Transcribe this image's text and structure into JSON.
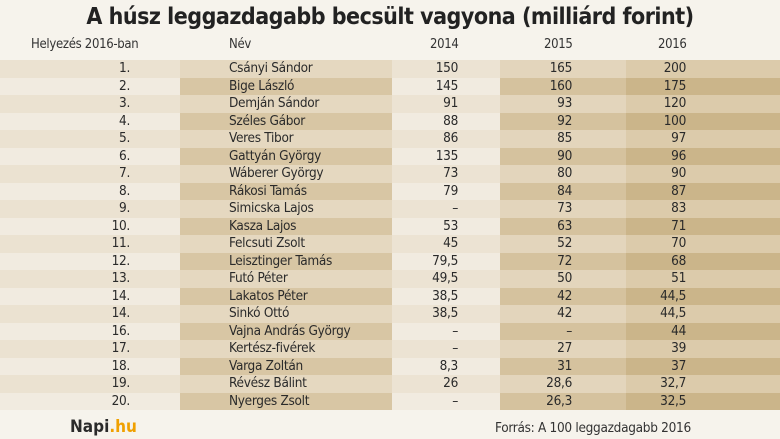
{
  "title": "A húsz leggazdagabb becsült vagyona (milliárd forint)",
  "chart_data": {
    "type": "table",
    "columns": [
      "Helyezés 2016-ban",
      "Név",
      "2014",
      "2015",
      "2016"
    ],
    "rows": [
      [
        "1.",
        "Csányi Sándor",
        "150",
        "165",
        "200"
      ],
      [
        "2.",
        "Bige László",
        "145",
        "160",
        "175"
      ],
      [
        "3.",
        "Demján Sándor",
        "91",
        "93",
        "120"
      ],
      [
        "4.",
        "Széles Gábor",
        "88",
        "92",
        "100"
      ],
      [
        "5.",
        "Veres Tibor",
        "86",
        "85",
        "97"
      ],
      [
        "6.",
        "Gattyán György",
        "135",
        "90",
        "96"
      ],
      [
        "7.",
        "Wáberer György",
        "73",
        "80",
        "90"
      ],
      [
        "8.",
        "Rákosi Tamás",
        "79",
        "84",
        "87"
      ],
      [
        "9.",
        "Simicska Lajos",
        "–",
        "73",
        "83"
      ],
      [
        "10.",
        "Kasza Lajos",
        "53",
        "63",
        "71"
      ],
      [
        "11.",
        "Felcsuti Zsolt",
        "45",
        "52",
        "70"
      ],
      [
        "12.",
        "Leisztinger Tamás",
        "79,5",
        "72",
        "68"
      ],
      [
        "13.",
        "Futó Péter",
        "49,5",
        "50",
        "51"
      ],
      [
        "14.",
        "Lakatos Péter",
        "38,5",
        "42",
        "44,5"
      ],
      [
        "14.",
        "Sinkó Ottó",
        "38,5",
        "42",
        "44,5"
      ],
      [
        "16.",
        "Vajna András György",
        "–",
        "–",
        "44"
      ],
      [
        "17.",
        "Kertész-fivérek",
        "–",
        "27",
        "39"
      ],
      [
        "18.",
        "Varga Zoltán",
        "8,3",
        "31",
        "37"
      ],
      [
        "19.",
        "Révész Bálint",
        "26",
        "28,6",
        "32,7"
      ],
      [
        "20.",
        "Nyerges Zsolt",
        "–",
        "26,3",
        "32,5"
      ]
    ]
  },
  "footer": {
    "logo_main": "Napi",
    "logo_suffix": ".hu",
    "source": "Forrás: A 100 leggazdagabb 2016"
  },
  "colors": {
    "logo_accent": "#f0a000",
    "dark_column": "#cbb58a"
  }
}
